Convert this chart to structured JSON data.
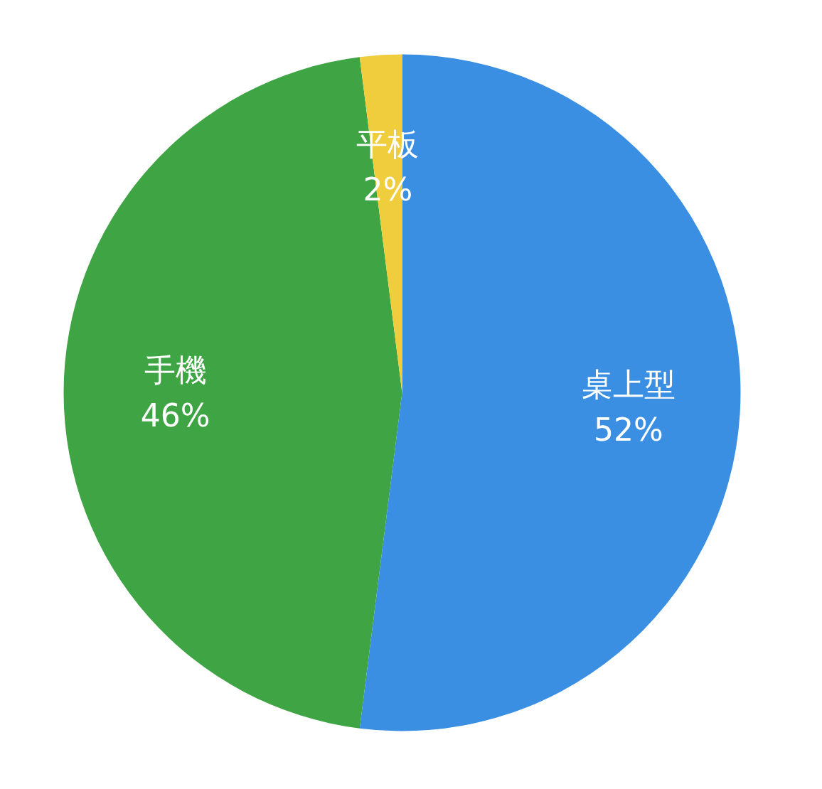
{
  "chart_data": {
    "type": "pie",
    "categories": [
      "桌上型",
      "手機",
      "平板"
    ],
    "values": [
      52,
      46,
      2
    ],
    "colors": [
      "#3a8fe2",
      "#3fa444",
      "#efcd3c"
    ],
    "value_labels": [
      "52%",
      "46%",
      "2%"
    ],
    "legend": false
  }
}
